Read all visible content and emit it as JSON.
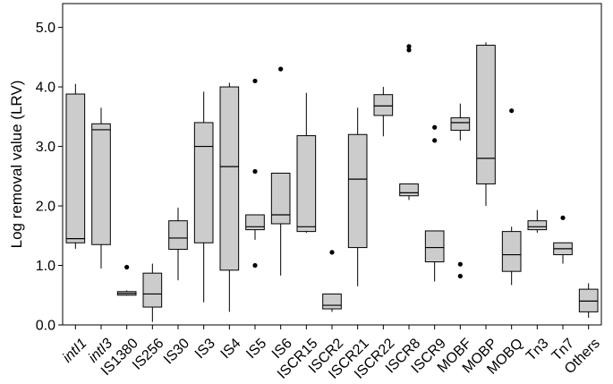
{
  "chart_data": {
    "type": "box",
    "ylabel": "Log removal value (LRV)",
    "ylim": [
      0.0,
      5.4
    ],
    "yticks": [
      "0.0",
      "1.0",
      "2.0",
      "3.0",
      "4.0",
      "5.0"
    ],
    "box_fill": "#cccccc",
    "categories": [
      {
        "label": "intI1",
        "italic": true,
        "min": 1.28,
        "q1": 1.38,
        "median": 1.45,
        "q3": 3.88,
        "max": 4.05,
        "outliers": []
      },
      {
        "label": "intI3",
        "italic": true,
        "min": 0.95,
        "q1": 1.35,
        "median": 3.28,
        "q3": 3.38,
        "max": 3.65,
        "outliers": []
      },
      {
        "label": "IS1380",
        "italic": false,
        "min": 0.49,
        "q1": 0.5,
        "median": 0.53,
        "q3": 0.56,
        "max": 0.58,
        "outliers": [
          0.97
        ]
      },
      {
        "label": "IS256",
        "italic": false,
        "min": 0.05,
        "q1": 0.3,
        "median": 0.52,
        "q3": 0.87,
        "max": 1.03,
        "outliers": []
      },
      {
        "label": "IS30",
        "italic": false,
        "min": 0.75,
        "q1": 1.27,
        "median": 1.46,
        "q3": 1.75,
        "max": 1.97,
        "outliers": []
      },
      {
        "label": "IS3",
        "italic": false,
        "min": 0.38,
        "q1": 1.38,
        "median": 3.0,
        "q3": 3.4,
        "max": 3.92,
        "outliers": []
      },
      {
        "label": "IS4",
        "italic": false,
        "min": 0.22,
        "q1": 0.92,
        "median": 2.66,
        "q3": 4.0,
        "max": 4.07,
        "outliers": []
      },
      {
        "label": "IS5",
        "italic": false,
        "min": 1.43,
        "q1": 1.6,
        "median": 1.65,
        "q3": 1.85,
        "max": 1.85,
        "outliers": [
          4.1,
          2.58,
          1.0
        ]
      },
      {
        "label": "IS6",
        "italic": false,
        "min": 0.83,
        "q1": 1.7,
        "median": 1.85,
        "q3": 2.55,
        "max": 2.55,
        "outliers": [
          4.3
        ]
      },
      {
        "label": "ISCR15",
        "italic": false,
        "min": 1.55,
        "q1": 1.57,
        "median": 1.65,
        "q3": 3.18,
        "max": 3.9,
        "outliers": []
      },
      {
        "label": "ISCR2",
        "italic": false,
        "min": 0.22,
        "q1": 0.27,
        "median": 0.33,
        "q3": 0.52,
        "max": 0.52,
        "outliers": [
          1.22
        ]
      },
      {
        "label": "ISCR21",
        "italic": false,
        "min": 0.65,
        "q1": 1.3,
        "median": 2.45,
        "q3": 3.2,
        "max": 3.65,
        "outliers": []
      },
      {
        "label": "ISCR22",
        "italic": false,
        "min": 3.17,
        "q1": 3.52,
        "median": 3.68,
        "q3": 3.87,
        "max": 4.0,
        "outliers": []
      },
      {
        "label": "ISCR8",
        "italic": false,
        "min": 2.1,
        "q1": 2.17,
        "median": 2.22,
        "q3": 2.37,
        "max": 2.37,
        "outliers": [
          4.68,
          4.62
        ]
      },
      {
        "label": "ISCR9",
        "italic": false,
        "min": 0.73,
        "q1": 1.06,
        "median": 1.3,
        "q3": 1.58,
        "max": 1.58,
        "outliers": [
          3.32,
          3.1
        ]
      },
      {
        "label": "MOBF",
        "italic": false,
        "min": 3.1,
        "q1": 3.27,
        "median": 3.4,
        "q3": 3.48,
        "max": 3.72,
        "outliers": [
          1.02,
          0.82
        ]
      },
      {
        "label": "MOBP",
        "italic": false,
        "min": 2.0,
        "q1": 2.37,
        "median": 2.8,
        "q3": 4.7,
        "max": 4.75,
        "outliers": []
      },
      {
        "label": "MOBQ",
        "italic": false,
        "min": 0.67,
        "q1": 0.9,
        "median": 1.18,
        "q3": 1.57,
        "max": 1.65,
        "outliers": [
          3.6
        ]
      },
      {
        "label": "Tn3",
        "italic": false,
        "min": 1.55,
        "q1": 1.6,
        "median": 1.65,
        "q3": 1.75,
        "max": 1.93,
        "outliers": []
      },
      {
        "label": "Tn7",
        "italic": false,
        "min": 1.03,
        "q1": 1.18,
        "median": 1.28,
        "q3": 1.38,
        "max": 1.38,
        "outliers": [
          1.8
        ]
      },
      {
        "label": "Others",
        "italic": false,
        "min": 0.12,
        "q1": 0.22,
        "median": 0.4,
        "q3": 0.6,
        "max": 0.7,
        "outliers": []
      }
    ]
  }
}
